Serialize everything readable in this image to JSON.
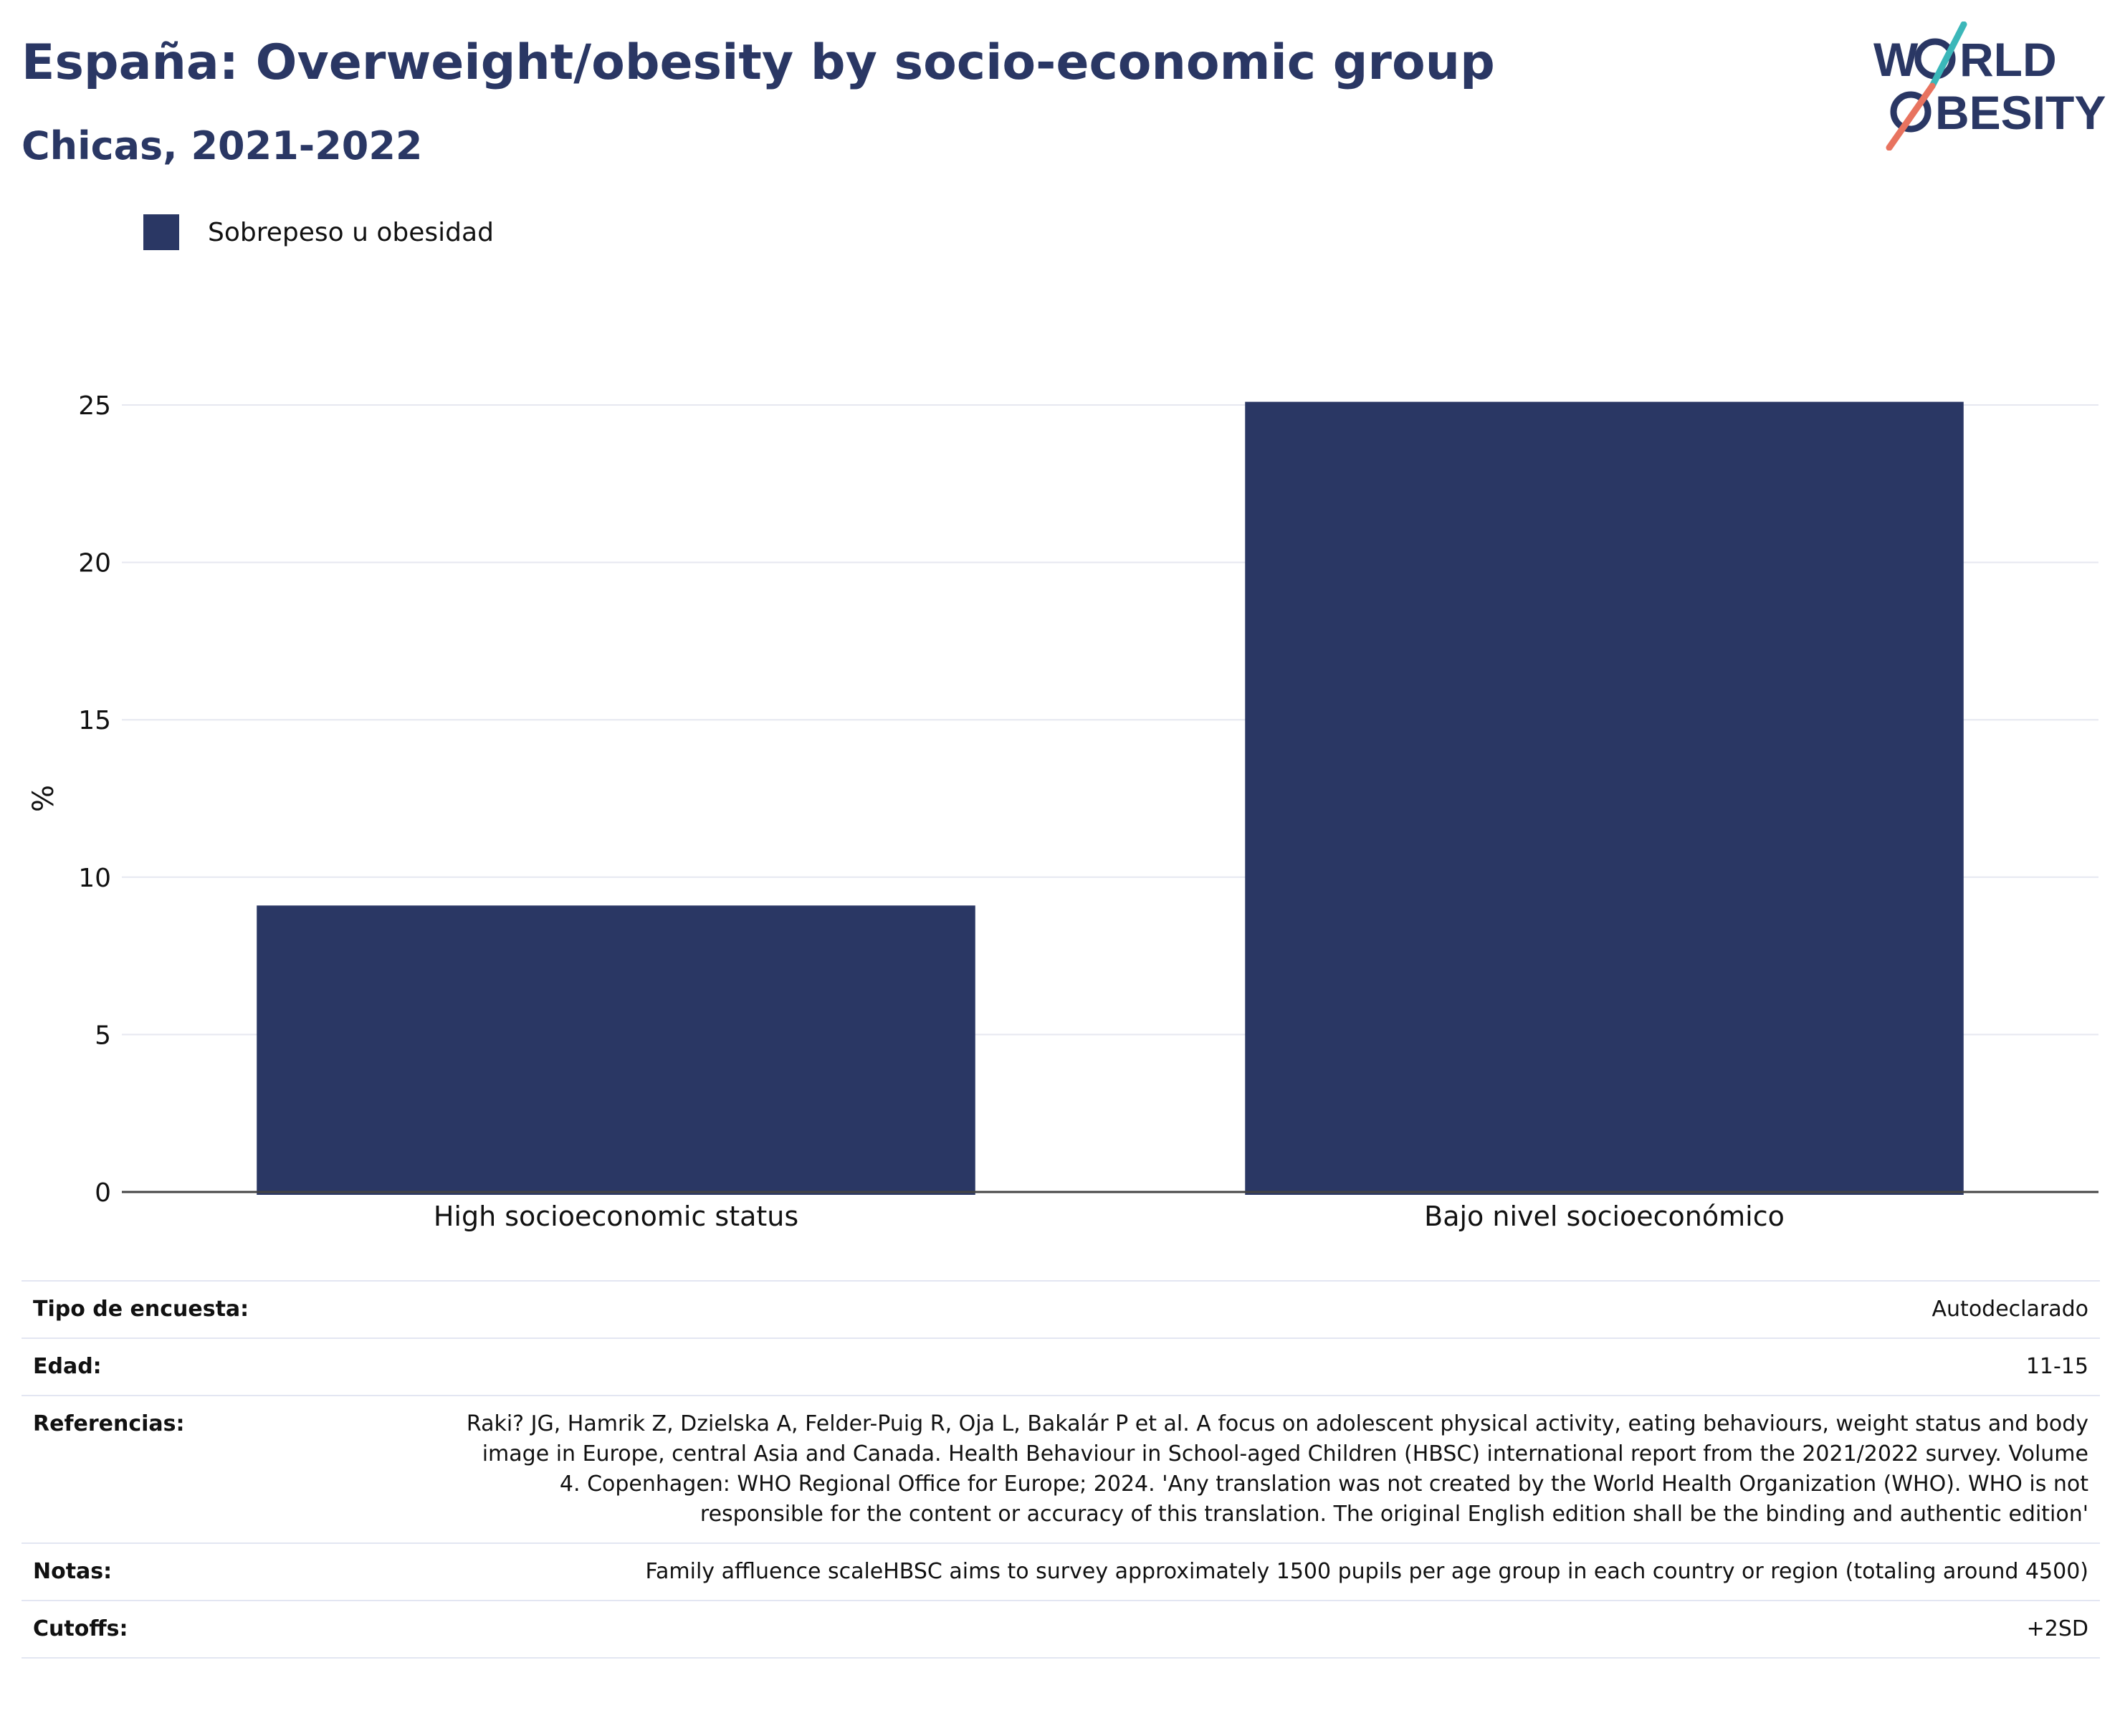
{
  "header": {
    "title": "España: Overweight/obesity by socio-economic group",
    "subtitle": "Chicas, 2021-2022"
  },
  "logo": {
    "line1": "W",
    "line1b": "RLD",
    "line2": "BESITY",
    "colors": {
      "text": "#2a3764",
      "teal": "#3bb7b9",
      "coral": "#e8735f"
    }
  },
  "chart_data": {
    "type": "bar",
    "categories": [
      "High socioeconomic status",
      "Bajo nivel socioeconómico"
    ],
    "series": [
      {
        "name": "Sobrepeso u obesidad",
        "values": [
          9.1,
          25.1
        ],
        "color": "#2a3764"
      }
    ],
    "ylabel": "%",
    "xlabel": "",
    "ylim": [
      0,
      27
    ],
    "yticks": [
      0,
      5,
      10,
      15,
      20,
      25
    ],
    "grid": true,
    "legend_position": "top-left"
  },
  "meta": {
    "rows": [
      {
        "key": "Tipo de encuesta:",
        "value": "Autodeclarado"
      },
      {
        "key": "Edad:",
        "value": "11-15"
      },
      {
        "key": "Referencias:",
        "value": "Raki? JG, Hamrik Z, Dzielska A, Felder-Puig R, Oja L, Bakalár P et al. A focus on adolescent physical activity, eating behaviours, weight status and body image in Europe, central Asia and Canada. Health Behaviour in School-aged Children (HBSC) international report from the 2021/2022 survey. Volume 4. Copenhagen: WHO Regional Office for Europe; 2024. 'Any translation was not created by the World Health Organization (WHO). WHO is not responsible for the content or accuracy of this translation. The original English edition shall be the binding and authentic edition'"
      },
      {
        "key": "Notas:",
        "value": "Family affluence scaleHBSC aims to survey approximately 1500 pupils per age group in each country or region (totaling around 4500)"
      },
      {
        "key": "Cutoffs:",
        "value": "+2SD"
      }
    ]
  }
}
